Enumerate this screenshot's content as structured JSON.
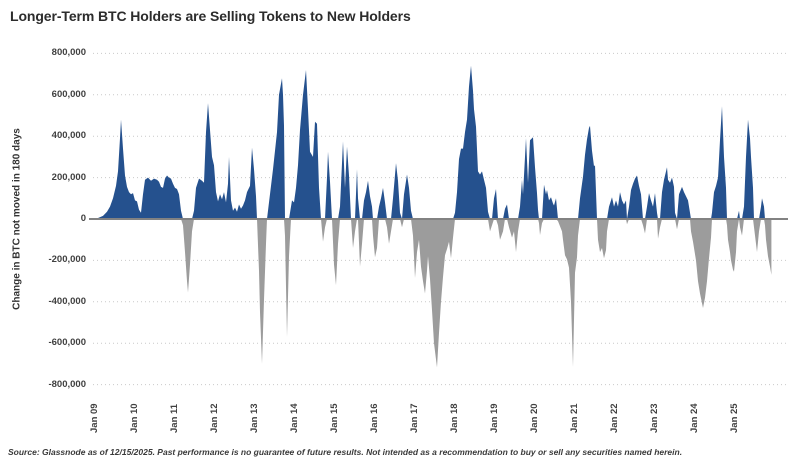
{
  "header": {
    "title": "Longer-Term BTC Holders are Selling Tokens to New Holders"
  },
  "footer": {
    "text": "Source: Glassnode as of 12/15/2025. Past performance is no guarantee of future results. Not intended as a recommendation to buy or sell any securities named herein."
  },
  "chart_data": {
    "type": "area",
    "title": "Longer-Term BTC Holders are Selling Tokens to New Holders",
    "xlabel": "",
    "ylabel": "Change in BTC not moved in 180 days",
    "ylim": [
      -800000,
      800000
    ],
    "xlim": [
      2009.0,
      2026.35
    ],
    "grid": "horizontal-dotted",
    "legend": "none",
    "colors": {
      "positive_fill": "#25518e",
      "negative_fill": "#9c9c9c",
      "zero_line": "#828282",
      "grid_line": "#c9c9c9",
      "text": "#404040"
    },
    "y_ticks": [
      {
        "value": 800000,
        "label": "800,000"
      },
      {
        "value": 600000,
        "label": "600,000"
      },
      {
        "value": 400000,
        "label": "400,000"
      },
      {
        "value": 200000,
        "label": "200,000"
      },
      {
        "value": 0,
        "label": "0"
      },
      {
        "value": -200000,
        "label": "-200,000"
      },
      {
        "value": -400000,
        "label": "-400,000"
      },
      {
        "value": -600000,
        "label": "-600,000"
      },
      {
        "value": -800000,
        "label": "-800,000"
      }
    ],
    "x_tick_labels": [
      "Jan 09",
      "Jan 10",
      "Jan 11",
      "Jan 12",
      "Jan 13",
      "Jan 14",
      "Jan 15",
      "Jan 16",
      "Jan 17",
      "Jan 18",
      "Jan 19",
      "Jan 20",
      "Jan 21",
      "Jan 22",
      "Jan 23",
      "Jan 24",
      "Jan 25"
    ],
    "series_name": "Change in BTC not moved in 180 days",
    "series": [
      [
        2009.0,
        0
      ],
      [
        2009.125,
        5000
      ],
      [
        2009.25,
        15000
      ],
      [
        2009.35,
        35000
      ],
      [
        2009.425,
        60000
      ],
      [
        2009.5,
        100000
      ],
      [
        2009.575,
        160000
      ],
      [
        2009.625,
        230000
      ],
      [
        2009.675,
        390000
      ],
      [
        2009.7,
        480000
      ],
      [
        2009.75,
        340000
      ],
      [
        2009.8,
        210000
      ],
      [
        2009.85,
        155000
      ],
      [
        2009.9,
        130000
      ],
      [
        2009.95,
        120000
      ],
      [
        2010.0,
        125000
      ],
      [
        2010.05,
        90000
      ],
      [
        2010.1,
        85000
      ],
      [
        2010.15,
        45000
      ],
      [
        2010.2,
        30000
      ],
      [
        2010.25,
        120000
      ],
      [
        2010.3,
        190000
      ],
      [
        2010.375,
        200000
      ],
      [
        2010.45,
        185000
      ],
      [
        2010.525,
        195000
      ],
      [
        2010.6,
        190000
      ],
      [
        2010.65,
        180000
      ],
      [
        2010.7,
        155000
      ],
      [
        2010.75,
        150000
      ],
      [
        2010.8,
        195000
      ],
      [
        2010.85,
        210000
      ],
      [
        2010.9,
        200000
      ],
      [
        2010.95,
        195000
      ],
      [
        2011.0,
        170000
      ],
      [
        2011.05,
        150000
      ],
      [
        2011.1,
        145000
      ],
      [
        2011.15,
        120000
      ],
      [
        2011.2,
        40000
      ],
      [
        2011.25,
        -30000
      ],
      [
        2011.3,
        -160000
      ],
      [
        2011.35,
        -300000
      ],
      [
        2011.375,
        -355000
      ],
      [
        2011.425,
        -220000
      ],
      [
        2011.475,
        -60000
      ],
      [
        2011.525,
        40000
      ],
      [
        2011.575,
        150000
      ],
      [
        2011.65,
        195000
      ],
      [
        2011.725,
        185000
      ],
      [
        2011.775,
        175000
      ],
      [
        2011.825,
        420000
      ],
      [
        2011.875,
        560000
      ],
      [
        2011.925,
        430000
      ],
      [
        2011.975,
        300000
      ],
      [
        2012.025,
        260000
      ],
      [
        2012.075,
        130000
      ],
      [
        2012.125,
        85000
      ],
      [
        2012.175,
        120000
      ],
      [
        2012.225,
        95000
      ],
      [
        2012.275,
        130000
      ],
      [
        2012.325,
        80000
      ],
      [
        2012.375,
        170000
      ],
      [
        2012.4,
        300000
      ],
      [
        2012.45,
        90000
      ],
      [
        2012.5,
        40000
      ],
      [
        2012.55,
        55000
      ],
      [
        2012.6,
        35000
      ],
      [
        2012.65,
        70000
      ],
      [
        2012.7,
        50000
      ],
      [
        2012.75,
        65000
      ],
      [
        2012.8,
        90000
      ],
      [
        2012.85,
        130000
      ],
      [
        2012.875,
        140000
      ],
      [
        2012.925,
        160000
      ],
      [
        2012.975,
        345000
      ],
      [
        2013.025,
        240000
      ],
      [
        2013.075,
        110000
      ],
      [
        2013.1,
        0
      ],
      [
        2013.15,
        -250000
      ],
      [
        2013.175,
        -450000
      ],
      [
        2013.225,
        -700000
      ],
      [
        2013.275,
        -390000
      ],
      [
        2013.325,
        -120000
      ],
      [
        2013.35,
        0
      ],
      [
        2013.4,
        80000
      ],
      [
        2013.45,
        160000
      ],
      [
        2013.5,
        240000
      ],
      [
        2013.55,
        330000
      ],
      [
        2013.6,
        420000
      ],
      [
        2013.65,
        600000
      ],
      [
        2013.725,
        680000
      ],
      [
        2013.75,
        600000
      ],
      [
        2013.775,
        450000
      ],
      [
        2013.8,
        -80000
      ],
      [
        2013.85,
        -570000
      ],
      [
        2013.9,
        -180000
      ],
      [
        2013.95,
        60000
      ],
      [
        2013.975,
        90000
      ],
      [
        2014.025,
        80000
      ],
      [
        2014.075,
        150000
      ],
      [
        2014.125,
        260000
      ],
      [
        2014.175,
        430000
      ],
      [
        2014.25,
        600000
      ],
      [
        2014.325,
        720000
      ],
      [
        2014.375,
        530000
      ],
      [
        2014.425,
        325000
      ],
      [
        2014.5,
        300000
      ],
      [
        2014.55,
        470000
      ],
      [
        2014.6,
        460000
      ],
      [
        2014.65,
        150000
      ],
      [
        2014.7,
        0
      ],
      [
        2014.75,
        -110000
      ],
      [
        2014.8,
        -40000
      ],
      [
        2014.85,
        200000
      ],
      [
        2014.875,
        325000
      ],
      [
        2014.925,
        180000
      ],
      [
        2014.975,
        0
      ],
      [
        2015.025,
        -220000
      ],
      [
        2015.075,
        -320000
      ],
      [
        2015.125,
        -120000
      ],
      [
        2015.175,
        60000
      ],
      [
        2015.25,
        375000
      ],
      [
        2015.3,
        150000
      ],
      [
        2015.35,
        350000
      ],
      [
        2015.4,
        210000
      ],
      [
        2015.45,
        0
      ],
      [
        2015.5,
        -140000
      ],
      [
        2015.55,
        -60000
      ],
      [
        2015.6,
        240000
      ],
      [
        2015.625,
        100000
      ],
      [
        2015.675,
        -230000
      ],
      [
        2015.725,
        -120000
      ],
      [
        2015.775,
        90000
      ],
      [
        2015.825,
        130000
      ],
      [
        2015.875,
        185000
      ],
      [
        2015.925,
        110000
      ],
      [
        2015.975,
        60000
      ],
      [
        2016.0,
        -80000
      ],
      [
        2016.05,
        -185000
      ],
      [
        2016.1,
        -140000
      ],
      [
        2016.15,
        60000
      ],
      [
        2016.2,
        100000
      ],
      [
        2016.25,
        150000
      ],
      [
        2016.3,
        80000
      ],
      [
        2016.35,
        -40000
      ],
      [
        2016.4,
        -120000
      ],
      [
        2016.45,
        -60000
      ],
      [
        2016.5,
        100000
      ],
      [
        2016.575,
        270000
      ],
      [
        2016.625,
        185000
      ],
      [
        2016.675,
        30000
      ],
      [
        2016.725,
        -40000
      ],
      [
        2016.775,
        120000
      ],
      [
        2016.85,
        215000
      ],
      [
        2016.9,
        150000
      ],
      [
        2016.95,
        40000
      ],
      [
        2017.0,
        -80000
      ],
      [
        2017.05,
        -285000
      ],
      [
        2017.1,
        -160000
      ],
      [
        2017.15,
        -100000
      ],
      [
        2017.2,
        -230000
      ],
      [
        2017.25,
        -300000
      ],
      [
        2017.3,
        -360000
      ],
      [
        2017.35,
        -250000
      ],
      [
        2017.375,
        -180000
      ],
      [
        2017.425,
        -290000
      ],
      [
        2017.475,
        -440000
      ],
      [
        2017.525,
        -600000
      ],
      [
        2017.6,
        -717000
      ],
      [
        2017.65,
        -550000
      ],
      [
        2017.7,
        -400000
      ],
      [
        2017.75,
        -280000
      ],
      [
        2017.8,
        -175000
      ],
      [
        2017.85,
        -145000
      ],
      [
        2017.9,
        -110000
      ],
      [
        2017.95,
        -190000
      ],
      [
        2018.0,
        -90000
      ],
      [
        2018.05,
        30000
      ],
      [
        2018.1,
        130000
      ],
      [
        2018.15,
        290000
      ],
      [
        2018.2,
        340000
      ],
      [
        2018.25,
        340000
      ],
      [
        2018.3,
        420000
      ],
      [
        2018.35,
        480000
      ],
      [
        2018.4,
        640000
      ],
      [
        2018.45,
        740000
      ],
      [
        2018.5,
        620000
      ],
      [
        2018.525,
        530000
      ],
      [
        2018.575,
        446000
      ],
      [
        2018.625,
        230000
      ],
      [
        2018.675,
        215000
      ],
      [
        2018.725,
        230000
      ],
      [
        2018.775,
        190000
      ],
      [
        2018.825,
        150000
      ],
      [
        2018.875,
        35000
      ],
      [
        2018.925,
        -60000
      ],
      [
        2018.975,
        -30000
      ],
      [
        2019.025,
        100000
      ],
      [
        2019.075,
        145000
      ],
      [
        2019.125,
        -30000
      ],
      [
        2019.175,
        -100000
      ],
      [
        2019.25,
        -60000
      ],
      [
        2019.3,
        50000
      ],
      [
        2019.35,
        70000
      ],
      [
        2019.4,
        -40000
      ],
      [
        2019.475,
        -90000
      ],
      [
        2019.525,
        -60000
      ],
      [
        2019.575,
        -160000
      ],
      [
        2019.625,
        -60000
      ],
      [
        2019.675,
        60000
      ],
      [
        2019.725,
        190000
      ],
      [
        2019.75,
        120000
      ],
      [
        2019.825,
        390000
      ],
      [
        2019.875,
        175000
      ],
      [
        2019.925,
        380000
      ],
      [
        2020.0,
        395000
      ],
      [
        2020.05,
        250000
      ],
      [
        2020.1,
        125000
      ],
      [
        2020.125,
        45000
      ],
      [
        2020.15,
        -20000
      ],
      [
        2020.175,
        -78000
      ],
      [
        2020.225,
        -20000
      ],
      [
        2020.275,
        165000
      ],
      [
        2020.325,
        120000
      ],
      [
        2020.35,
        140000
      ],
      [
        2020.4,
        90000
      ],
      [
        2020.45,
        105000
      ],
      [
        2020.5,
        75000
      ],
      [
        2020.525,
        65000
      ],
      [
        2020.575,
        100000
      ],
      [
        2020.625,
        -10000
      ],
      [
        2020.675,
        -35000
      ],
      [
        2020.725,
        -60000
      ],
      [
        2020.75,
        -100000
      ],
      [
        2020.8,
        -175000
      ],
      [
        2020.85,
        -195000
      ],
      [
        2020.9,
        -235000
      ],
      [
        2020.95,
        -400000
      ],
      [
        2021.0,
        -715000
      ],
      [
        2021.05,
        -260000
      ],
      [
        2021.1,
        -185000
      ],
      [
        2021.125,
        -80000
      ],
      [
        2021.175,
        100000
      ],
      [
        2021.25,
        205000
      ],
      [
        2021.3,
        310000
      ],
      [
        2021.35,
        385000
      ],
      [
        2021.4,
        440000
      ],
      [
        2021.425,
        450000
      ],
      [
        2021.475,
        330000
      ],
      [
        2021.525,
        255000
      ],
      [
        2021.55,
        260000
      ],
      [
        2021.6,
        0
      ],
      [
        2021.625,
        -100000
      ],
      [
        2021.675,
        -160000
      ],
      [
        2021.725,
        -140000
      ],
      [
        2021.775,
        -190000
      ],
      [
        2021.825,
        -150000
      ],
      [
        2021.85,
        -60000
      ],
      [
        2021.9,
        60000
      ],
      [
        2021.95,
        90000
      ],
      [
        2021.975,
        105000
      ],
      [
        2022.025,
        60000
      ],
      [
        2022.075,
        90000
      ],
      [
        2022.125,
        60000
      ],
      [
        2022.175,
        130000
      ],
      [
        2022.225,
        90000
      ],
      [
        2022.275,
        70000
      ],
      [
        2022.325,
        90000
      ],
      [
        2022.35,
        -25000
      ],
      [
        2022.4,
        60000
      ],
      [
        2022.45,
        140000
      ],
      [
        2022.5,
        170000
      ],
      [
        2022.55,
        195000
      ],
      [
        2022.6,
        210000
      ],
      [
        2022.65,
        160000
      ],
      [
        2022.7,
        120000
      ],
      [
        2022.75,
        -30000
      ],
      [
        2022.8,
        -70000
      ],
      [
        2022.85,
        60000
      ],
      [
        2022.9,
        125000
      ],
      [
        2022.95,
        90000
      ],
      [
        2023.0,
        60000
      ],
      [
        2023.05,
        125000
      ],
      [
        2023.1,
        30000
      ],
      [
        2023.125,
        -95000
      ],
      [
        2023.175,
        -40000
      ],
      [
        2023.225,
        130000
      ],
      [
        2023.275,
        190000
      ],
      [
        2023.35,
        250000
      ],
      [
        2023.375,
        190000
      ],
      [
        2023.425,
        175000
      ],
      [
        2023.475,
        200000
      ],
      [
        2023.525,
        155000
      ],
      [
        2023.55,
        30000
      ],
      [
        2023.6,
        -50000
      ],
      [
        2023.65,
        120000
      ],
      [
        2023.725,
        155000
      ],
      [
        2023.775,
        130000
      ],
      [
        2023.825,
        110000
      ],
      [
        2023.875,
        90000
      ],
      [
        2023.925,
        30000
      ],
      [
        2023.95,
        -60000
      ],
      [
        2024.0,
        -110000
      ],
      [
        2024.075,
        -200000
      ],
      [
        2024.125,
        -300000
      ],
      [
        2024.175,
        -360000
      ],
      [
        2024.25,
        -430000
      ],
      [
        2024.3,
        -380000
      ],
      [
        2024.35,
        -300000
      ],
      [
        2024.4,
        -190000
      ],
      [
        2024.45,
        -90000
      ],
      [
        2024.475,
        30000
      ],
      [
        2024.525,
        130000
      ],
      [
        2024.575,
        160000
      ],
      [
        2024.625,
        200000
      ],
      [
        2024.675,
        380000
      ],
      [
        2024.725,
        545000
      ],
      [
        2024.775,
        300000
      ],
      [
        2024.825,
        150000
      ],
      [
        2024.85,
        -30000
      ],
      [
        2024.875,
        -100000
      ],
      [
        2024.925,
        -160000
      ],
      [
        2024.95,
        -200000
      ],
      [
        2025.0,
        -245000
      ],
      [
        2025.025,
        -255000
      ],
      [
        2025.075,
        -160000
      ],
      [
        2025.1,
        -60000
      ],
      [
        2025.15,
        40000
      ],
      [
        2025.175,
        -40000
      ],
      [
        2025.225,
        -80000
      ],
      [
        2025.275,
        60000
      ],
      [
        2025.325,
        300000
      ],
      [
        2025.375,
        480000
      ],
      [
        2025.425,
        390000
      ],
      [
        2025.45,
        300000
      ],
      [
        2025.5,
        150000
      ],
      [
        2025.525,
        -40000
      ],
      [
        2025.575,
        -120000
      ],
      [
        2025.6,
        -160000
      ],
      [
        2025.65,
        -60000
      ],
      [
        2025.7,
        60000
      ],
      [
        2025.725,
        100000
      ],
      [
        2025.775,
        60000
      ],
      [
        2025.8,
        -30000
      ],
      [
        2025.825,
        -100000
      ],
      [
        2025.875,
        -180000
      ],
      [
        2025.925,
        -230000
      ],
      [
        2025.96,
        -270000
      ]
    ]
  }
}
